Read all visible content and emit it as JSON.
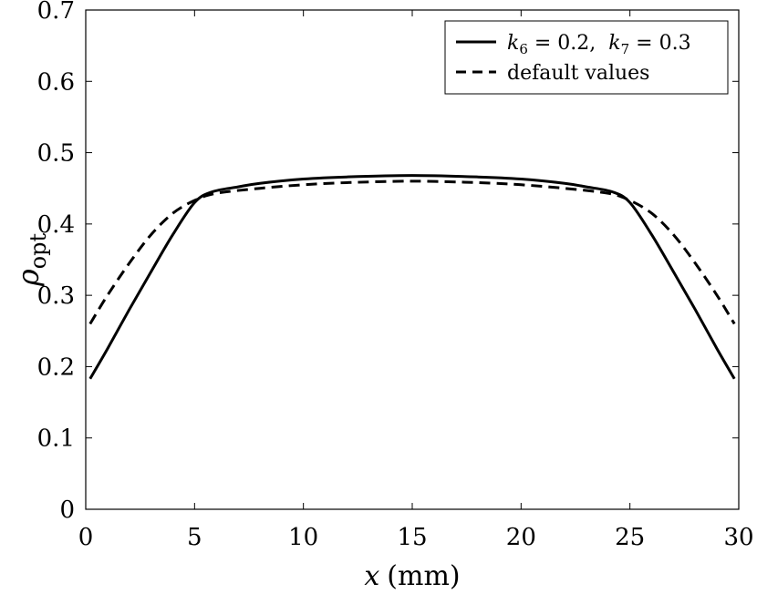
{
  "chart_data": {
    "type": "line",
    "xlabel": "x",
    "xlabel_units": "(mm)",
    "ylabel": "ρ",
    "ylabel_sub": "opt",
    "xlim": [
      0,
      30
    ],
    "ylim": [
      0,
      0.7
    ],
    "xticks": [
      0,
      5,
      10,
      15,
      20,
      25,
      30
    ],
    "yticks": [
      0,
      0.1,
      0.2,
      0.3,
      0.4,
      0.5,
      0.6,
      0.7
    ],
    "xtick_labels": [
      "0",
      "5",
      "10",
      "15",
      "20",
      "25",
      "30"
    ],
    "ytick_labels": [
      "0",
      "0.1",
      "0.2",
      "0.3",
      "0.4",
      "0.5",
      "0.6",
      "0.7"
    ],
    "grid": false,
    "legend_position": "top-right",
    "series": [
      {
        "name": "k6 = 0.2,  k7 = 0.3",
        "style": "solid",
        "color": "#000000",
        "x": [
          0.2,
          1,
          2,
          3,
          4,
          5,
          5.8,
          7,
          8,
          10,
          12,
          15,
          18,
          20,
          22,
          23,
          24.2,
          25,
          26,
          27,
          28,
          29,
          29.8
        ],
        "y": [
          0.183,
          0.225,
          0.28,
          0.333,
          0.385,
          0.43,
          0.445,
          0.452,
          0.457,
          0.463,
          0.466,
          0.468,
          0.466,
          0.463,
          0.457,
          0.452,
          0.445,
          0.43,
          0.385,
          0.333,
          0.28,
          0.225,
          0.183
        ]
      },
      {
        "name": "default values",
        "style": "dashed",
        "color": "#000000",
        "x": [
          0.2,
          1,
          2,
          3,
          4,
          5,
          6,
          8,
          10,
          12,
          15,
          18,
          20,
          22,
          24,
          25,
          26,
          27,
          28,
          29,
          29.8
        ],
        "y": [
          0.26,
          0.3,
          0.345,
          0.385,
          0.415,
          0.433,
          0.443,
          0.45,
          0.455,
          0.458,
          0.46,
          0.458,
          0.455,
          0.45,
          0.443,
          0.433,
          0.415,
          0.385,
          0.345,
          0.3,
          0.26
        ]
      }
    ]
  },
  "legend": {
    "k6": "k",
    "k6_sub": "6",
    "k6_val": " = 0.2,",
    "k7": "k",
    "k7_sub": "7",
    "k7_val": " = 0.3",
    "default_label": "default values"
  }
}
